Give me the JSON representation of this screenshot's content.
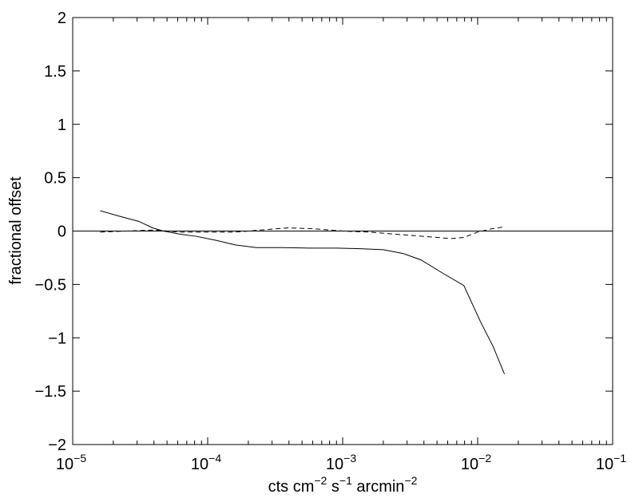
{
  "chart_data": {
    "type": "line",
    "xlabel": {
      "parts": [
        {
          "text": "cts cm"
        },
        {
          "text": "−2",
          "sup": true
        },
        {
          "text": " s"
        },
        {
          "text": "−1",
          "sup": true
        },
        {
          "text": " arcmin"
        },
        {
          "text": "−2",
          "sup": true
        }
      ]
    },
    "ylabel": "fractional offset",
    "xscale": "log",
    "xlim": [
      1e-05,
      0.1
    ],
    "ylim": [
      -2,
      2
    ],
    "grid": false,
    "x_ticks": [
      {
        "value": 1e-05,
        "base": "10",
        "exp": "−5"
      },
      {
        "value": 0.0001,
        "base": "10",
        "exp": "−4"
      },
      {
        "value": 0.001,
        "base": "10",
        "exp": "−3"
      },
      {
        "value": 0.01,
        "base": "10",
        "exp": "−2"
      },
      {
        "value": 0.1,
        "base": "10",
        "exp": "−1"
      }
    ],
    "y_ticks": [
      {
        "value": 2,
        "label": "2"
      },
      {
        "value": 1.5,
        "label": "1.5"
      },
      {
        "value": 1,
        "label": "1"
      },
      {
        "value": 0.5,
        "label": "0.5"
      },
      {
        "value": 0,
        "label": "0"
      },
      {
        "value": -0.5,
        "label": "−0.5"
      },
      {
        "value": -1,
        "label": "−1"
      },
      {
        "value": -1.5,
        "label": "−1.5"
      },
      {
        "value": -2,
        "label": "−2"
      }
    ],
    "reference_line": {
      "y": 0,
      "style": "solid"
    },
    "series": [
      {
        "style": "solid",
        "x": [
          1.6e-05,
          2.2e-05,
          3.1e-05,
          3.9e-05,
          4.7e-05,
          6.3e-05,
          8.3e-05,
          0.000118,
          0.00016,
          0.00023,
          0.00036,
          0.00056,
          0.0009,
          0.00135,
          0.002,
          0.0028,
          0.0038,
          0.0056,
          0.0079,
          0.0105,
          0.013,
          0.0158
        ],
        "y": [
          0.19,
          0.14,
          0.09,
          0.03,
          0.0,
          -0.03,
          -0.05,
          -0.09,
          -0.13,
          -0.155,
          -0.155,
          -0.16,
          -0.16,
          -0.165,
          -0.175,
          -0.21,
          -0.27,
          -0.4,
          -0.51,
          -0.85,
          -1.08,
          -1.34
        ]
      },
      {
        "style": "dashed",
        "x": [
          1.6e-05,
          2.5e-05,
          4e-05,
          6.3e-05,
          0.0001,
          0.00016,
          0.00025,
          0.0004,
          0.00063,
          0.001,
          0.0016,
          0.0025,
          0.004,
          0.0063,
          0.0079,
          0.01,
          0.0126,
          0.0158
        ],
        "y": [
          -0.01,
          0.0,
          0.01,
          -0.01,
          -0.01,
          -0.01,
          0.01,
          0.03,
          0.02,
          0.0,
          -0.01,
          -0.03,
          -0.05,
          -0.07,
          -0.06,
          -0.01,
          0.02,
          0.04
        ]
      }
    ]
  }
}
